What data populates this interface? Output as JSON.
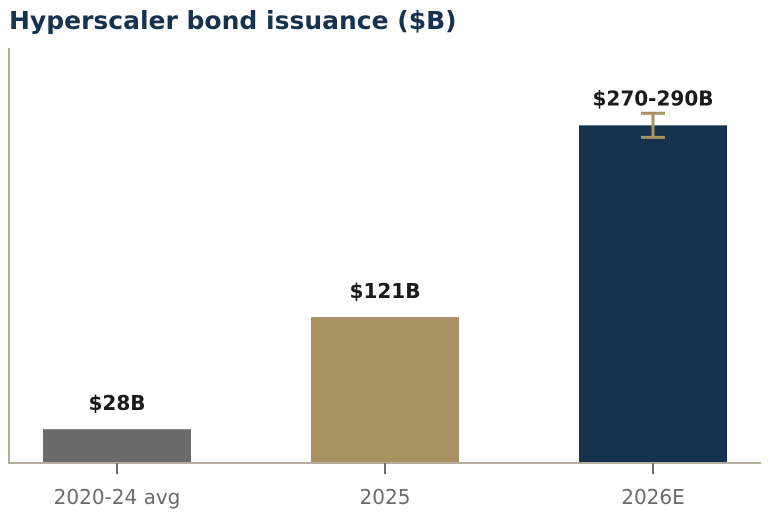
{
  "chart_data": {
    "type": "bar",
    "title": "Hyperscaler bond issuance ($B)",
    "xlabel": "",
    "ylabel": "",
    "categories": [
      "2020-24 avg",
      "2025",
      "2026E"
    ],
    "values": [
      28,
      121,
      280
    ],
    "range": [
      null,
      null,
      [
        270,
        290
      ]
    ],
    "data_labels": [
      "$28B",
      "$121B",
      "$270-290B"
    ],
    "colors": [
      "#6a6a6a",
      "#a89162",
      "#17324f"
    ],
    "error_bar_color": "#a89162",
    "axis_color": "#b5ad9f",
    "ylim": [
      0,
      340
    ],
    "grid": false,
    "legend": "none"
  }
}
